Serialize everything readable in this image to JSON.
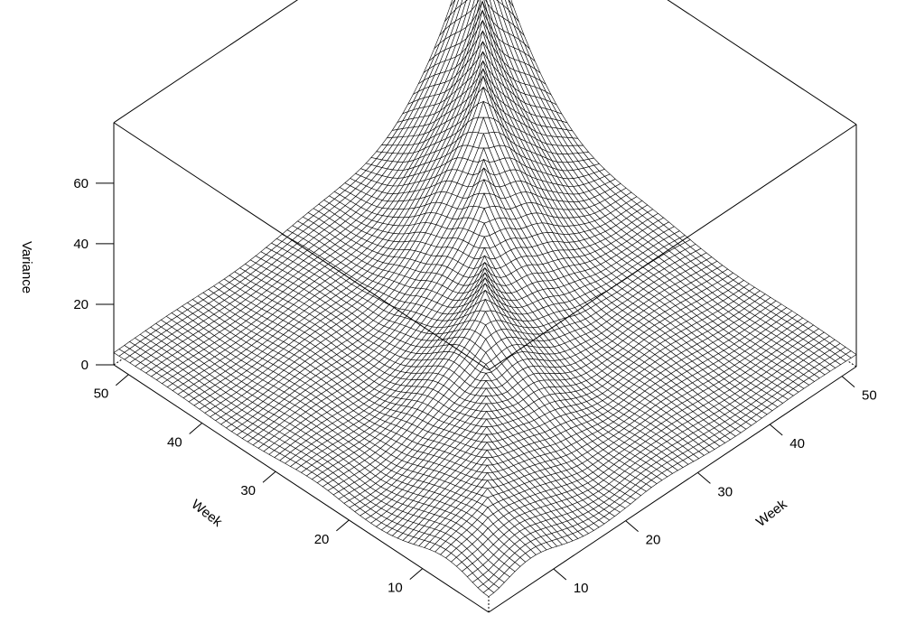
{
  "chart_data": {
    "type": "surface",
    "title": "",
    "xlabel": "Week",
    "ylabel": "Week",
    "zlabel": "Variance",
    "x_range": [
      1,
      52
    ],
    "y_range": [
      1,
      52
    ],
    "z_range": [
      0,
      70
    ],
    "x_ticks": [
      10,
      20,
      30,
      40,
      50
    ],
    "y_ticks": [
      10,
      20,
      30,
      40,
      50
    ],
    "z_ticks": [
      0,
      20,
      40,
      60
    ],
    "x_tick_labels": [
      "10",
      "20",
      "30",
      "40",
      "50"
    ],
    "y_tick_labels": [
      "10",
      "20",
      "30",
      "40",
      "50"
    ],
    "z_tick_labels": [
      "0",
      "20",
      "40",
      "60"
    ],
    "diagonal_profile": [
      {
        "week": 1,
        "variance": 5
      },
      {
        "week": 10,
        "variance": 14
      },
      {
        "week": 20,
        "variance": 15
      },
      {
        "week": 25,
        "variance": 25
      },
      {
        "week": 30,
        "variance": 20
      },
      {
        "week": 35,
        "variance": 30
      },
      {
        "week": 40,
        "variance": 45
      },
      {
        "week": 46,
        "variance": 52
      },
      {
        "week": 52,
        "variance": 68
      }
    ],
    "edge_level": 4,
    "mesh_color": "#000000",
    "surface_color": "#ffffff",
    "grid": false
  }
}
